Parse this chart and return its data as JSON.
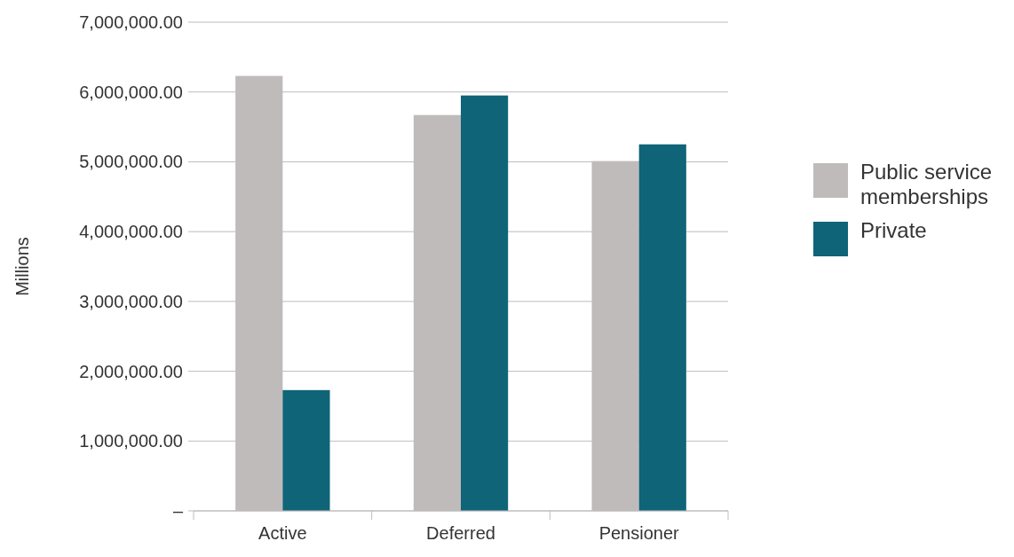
{
  "chart_data": {
    "type": "bar",
    "ylabel": "Millions",
    "categories": [
      "Active",
      "Deferred",
      "Pensioner"
    ],
    "series": [
      {
        "name": "Public service memberships",
        "color": "#bfbbbb",
        "values": [
          6230000,
          5670000,
          5010000
        ]
      },
      {
        "name": "Private",
        "color": "#0f6478",
        "values": [
          1730000,
          5950000,
          5250000
        ]
      }
    ],
    "ylim": [
      0,
      7000000
    ],
    "yticks": [
      {
        "value": 0,
        "label": "–"
      },
      {
        "value": 1000000,
        "label": "1,000,000.00"
      },
      {
        "value": 2000000,
        "label": "2,000,000.00"
      },
      {
        "value": 3000000,
        "label": "3,000,000.00"
      },
      {
        "value": 4000000,
        "label": "4,000,000.00"
      },
      {
        "value": 5000000,
        "label": "5,000,000.00"
      },
      {
        "value": 6000000,
        "label": "6,000,000.00"
      },
      {
        "value": 7000000,
        "label": "7,000,000.00"
      }
    ],
    "grid": "y",
    "legend": "right"
  }
}
